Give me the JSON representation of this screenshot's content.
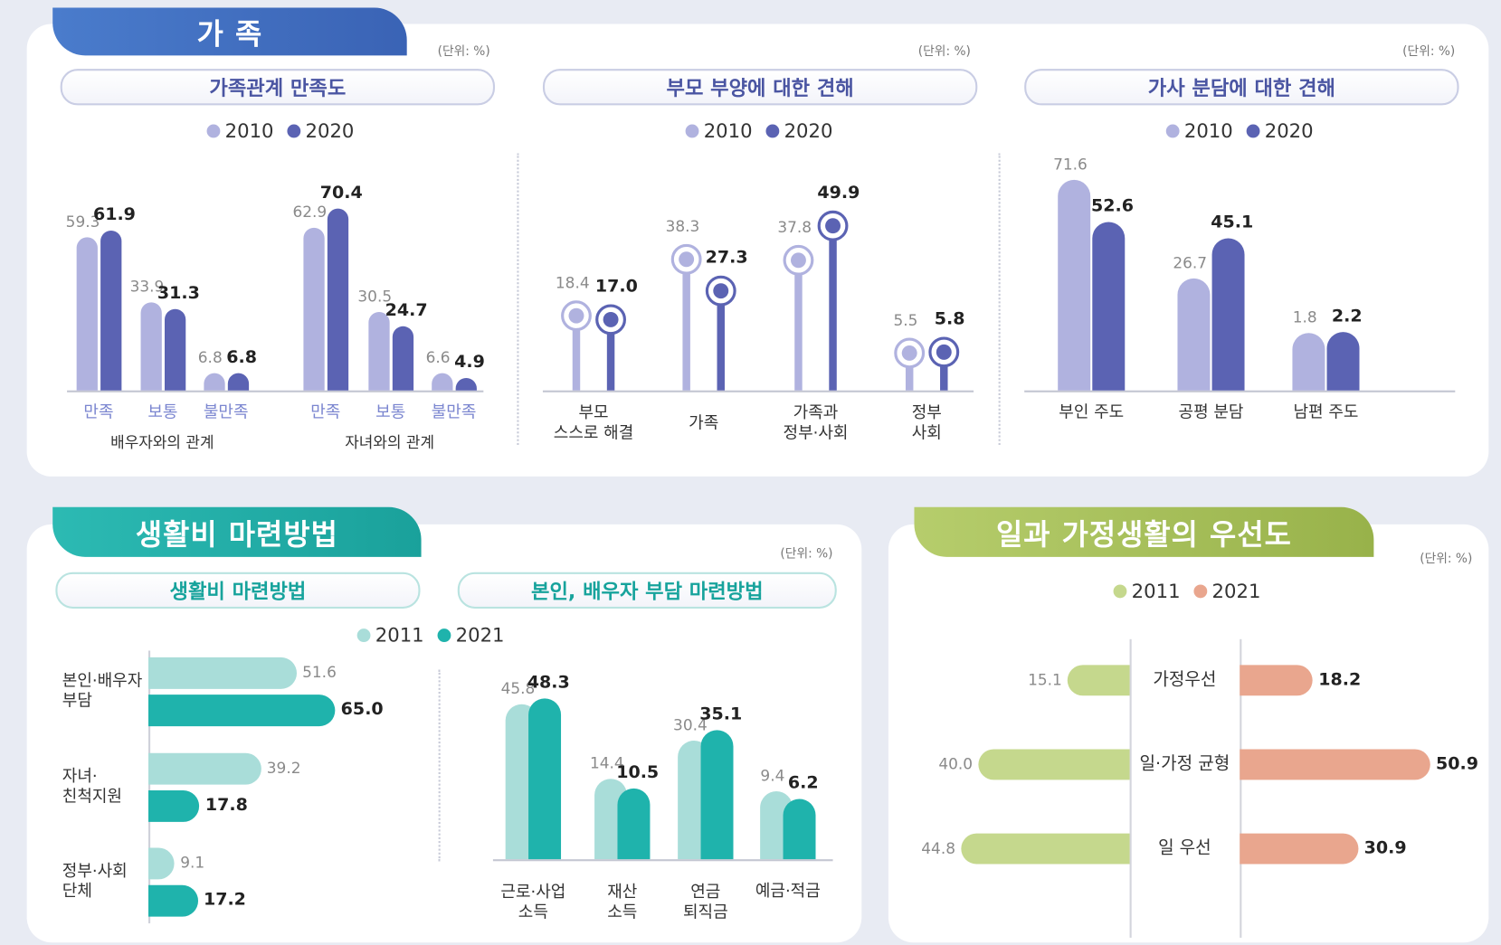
{
  "sections": [
    "가 족",
    "생활비 마련방법",
    "일과 가정생활의 우선도"
  ],
  "chart_data": [
    {
      "type": "bar",
      "title": "가족관계 만족도",
      "unit": "(단위: %)",
      "categories": [
        "만족",
        "보통",
        "불만족",
        "만족",
        "보통",
        "불만족"
      ],
      "group_labels": [
        "배우자와의 관계",
        "자녀와의 관계"
      ],
      "series": [
        {
          "name": "2010",
          "color": "#b0b2df",
          "values": [
            59.3,
            33.9,
            6.8,
            62.9,
            30.5,
            6.6
          ]
        },
        {
          "name": "2020",
          "color": "#5b63b3",
          "values": [
            61.9,
            31.3,
            6.8,
            70.4,
            24.7,
            4.9
          ]
        }
      ]
    },
    {
      "type": "lollipop",
      "title": "부모 부양에 대한 견해",
      "unit": "(단위: %)",
      "categories": [
        "부모\n스스로 해결",
        "가족",
        "가족과\n정부·사회",
        "정부\n사회"
      ],
      "series": [
        {
          "name": "2010",
          "color": "#b0b2df",
          "values": [
            18.4,
            38.3,
            37.8,
            5.5
          ]
        },
        {
          "name": "2020",
          "color": "#5b63b3",
          "values": [
            17.0,
            27.3,
            49.9,
            5.8
          ],
          "value_labels": [
            "17.0",
            "27.3",
            "49.9",
            "5.8"
          ]
        }
      ]
    },
    {
      "type": "bar",
      "title": "가사 분담에 대한 견해",
      "unit": "(단위: %)",
      "categories": [
        "부인 주도",
        "공평 분담",
        "남편 주도"
      ],
      "series": [
        {
          "name": "2010",
          "color": "#b0b2df",
          "values": [
            71.6,
            26.7,
            1.8
          ]
        },
        {
          "name": "2020",
          "color": "#5b63b3",
          "values": [
            52.6,
            45.1,
            2.2
          ]
        }
      ]
    },
    {
      "type": "hbar",
      "title": "생활비 마련방법",
      "categories": [
        "본인·배우자\n부담",
        "자녀·\n친척지원",
        "정부·사회\n단체"
      ],
      "series": [
        {
          "name": "2011",
          "color": "#a9ddd9",
          "values": [
            51.6,
            39.2,
            9.1
          ]
        },
        {
          "name": "2021",
          "color": "#1fb3ac",
          "values": [
            65.0,
            17.8,
            17.2
          ],
          "value_labels": [
            "65.0",
            "17.8",
            "17.2"
          ]
        }
      ]
    },
    {
      "type": "bar",
      "title": "본인, 배우자 부담 마련방법",
      "unit": "(단위: %)",
      "categories": [
        "근로·사업\n소득",
        "재산\n소득",
        "연금\n퇴직금",
        "예금·적금"
      ],
      "series": [
        {
          "color": "#a9ddd9",
          "values": [
            45.8,
            14.4,
            30.4,
            9.4
          ]
        },
        {
          "color": "#1fb3ac",
          "values": [
            48.3,
            10.5,
            35.1,
            6.2
          ]
        }
      ]
    },
    {
      "type": "butterfly",
      "unit": "(단위: %)",
      "categories": [
        "가정우선",
        "일·가정 균형",
        "일 우선"
      ],
      "series": [
        {
          "name": "2011",
          "color": "#c5d88d",
          "values": [
            15.1,
            40.0,
            44.8
          ],
          "value_labels": [
            "15.1",
            "40.0",
            "44.8"
          ]
        },
        {
          "name": "2021",
          "color": "#e9a68e",
          "values": [
            18.2,
            50.9,
            30.9
          ]
        }
      ]
    }
  ]
}
